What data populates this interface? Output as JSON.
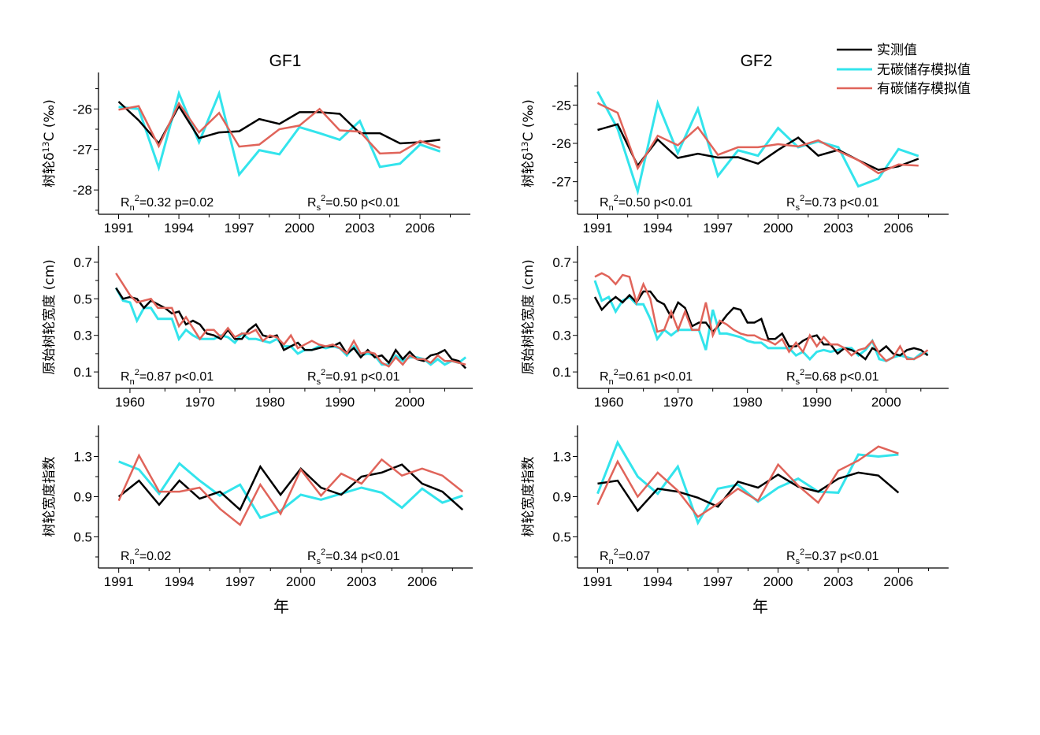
{
  "legend": {
    "entries": [
      {
        "label": "实测值",
        "color": "#000000"
      },
      {
        "label": "无碳储存模拟值",
        "color": "#33e4ec"
      },
      {
        "label": "有碳储存模拟值",
        "color": "#e0645a"
      }
    ]
  },
  "columns": [
    {
      "title": "GF1"
    },
    {
      "title": "GF2"
    }
  ],
  "xlabel": "年",
  "chart_data": [
    {
      "type": "line",
      "panel": "GF1-d13C",
      "column": 0,
      "row": 0,
      "title": "GF1",
      "ylabel": "树轮δ13C (‰)",
      "xlabel": "",
      "xlim": [
        1990,
        2008.5
      ],
      "ylim": [
        -28.6,
        -25.1
      ],
      "xticks": [
        1991,
        1994,
        1997,
        2000,
        2003,
        2006
      ],
      "yticks": [
        -26,
        -27,
        -28
      ],
      "stats": [
        {
          "label": "R",
          "sub": "n",
          "rest": "=0.32   p=0.02"
        },
        {
          "label": "R",
          "sub": "s",
          "rest": "=0.50   p<0.01"
        }
      ],
      "x": [
        1991,
        1992,
        1993,
        1994,
        1995,
        1996,
        1997,
        1998,
        1999,
        2000,
        2001,
        2002,
        2003,
        2004,
        2005,
        2006,
        2007
      ],
      "series": [
        {
          "name": "实测值",
          "values": [
            -25.82,
            -26.28,
            -26.85,
            -25.93,
            -26.72,
            -26.58,
            -26.55,
            -26.25,
            -26.37,
            -26.08,
            -26.08,
            -26.12,
            -26.6,
            -26.6,
            -26.85,
            -26.82,
            -26.76
          ]
        },
        {
          "name": "无碳储存模拟值",
          "values": [
            -25.95,
            -26.0,
            -27.45,
            -25.62,
            -26.82,
            -25.62,
            -27.62,
            -27.02,
            -27.12,
            -26.45,
            -26.6,
            -26.76,
            -26.3,
            -27.43,
            -27.35,
            -26.88,
            -27.05
          ]
        },
        {
          "name": "有碳储存模拟值",
          "values": [
            -26.02,
            -25.93,
            -26.92,
            -25.86,
            -26.58,
            -26.1,
            -26.93,
            -26.88,
            -26.5,
            -26.41,
            -26.0,
            -26.53,
            -26.56,
            -27.1,
            -27.08,
            -26.79,
            -26.96
          ]
        }
      ]
    },
    {
      "type": "line",
      "panel": "GF2-d13C",
      "column": 1,
      "row": 0,
      "title": "GF2",
      "ylabel": "树轮δ13C (‰)",
      "xlabel": "",
      "xlim": [
        1990,
        2008.5
      ],
      "ylim": [
        -27.85,
        -24.15
      ],
      "xticks": [
        1991,
        1994,
        1997,
        2000,
        2003,
        2006
      ],
      "yticks": [
        -25,
        -26,
        -27
      ],
      "stats": [
        {
          "label": "R",
          "sub": "n",
          "rest": "=0.50   p<0.01"
        },
        {
          "label": "R",
          "sub": "s",
          "rest": "=0.73   p<0.01"
        }
      ],
      "x": [
        1991,
        1992,
        1993,
        1994,
        1995,
        1996,
        1997,
        1998,
        1999,
        2000,
        2001,
        2002,
        2003,
        2004,
        2005,
        2006,
        2007
      ],
      "series": [
        {
          "name": "实测值",
          "values": [
            -25.65,
            -25.5,
            -26.58,
            -25.9,
            -26.38,
            -26.27,
            -26.37,
            -26.36,
            -26.53,
            -26.17,
            -25.85,
            -26.32,
            -26.17,
            -26.44,
            -26.69,
            -26.6,
            -26.4
          ]
        },
        {
          "name": "无碳储存模拟值",
          "values": [
            -24.65,
            -25.62,
            -27.25,
            -24.95,
            -26.25,
            -25.1,
            -26.85,
            -26.18,
            -26.32,
            -25.6,
            -26.1,
            -25.95,
            -26.1,
            -27.12,
            -26.92,
            -26.15,
            -26.33
          ]
        },
        {
          "name": "有碳储存模拟值",
          "values": [
            -24.95,
            -25.2,
            -26.65,
            -25.8,
            -26.05,
            -25.58,
            -26.3,
            -26.1,
            -26.1,
            -26.02,
            -26.08,
            -25.92,
            -26.2,
            -26.44,
            -26.78,
            -26.55,
            -26.58
          ]
        }
      ]
    },
    {
      "type": "line",
      "panel": "GF1-width",
      "column": 0,
      "row": 1,
      "title": "",
      "ylabel": "原始树轮宽度 (cm)",
      "xlabel": "",
      "xlim": [
        1955.5,
        2009
      ],
      "ylim": [
        0.01,
        0.79
      ],
      "xticks": [
        1960,
        1970,
        1980,
        1990,
        2000
      ],
      "yticks": [
        0.7,
        0.5,
        0.3,
        0.1
      ],
      "stats": [
        {
          "label": "R",
          "sub": "n",
          "rest": "=0.87   p<0.01"
        },
        {
          "label": "R",
          "sub": "s",
          "rest": "=0.91   p<0.01"
        }
      ],
      "x": [
        1958,
        1959,
        1960,
        1961,
        1962,
        1963,
        1964,
        1965,
        1966,
        1967,
        1968,
        1969,
        1970,
        1971,
        1972,
        1973,
        1974,
        1975,
        1976,
        1977,
        1978,
        1979,
        1980,
        1981,
        1982,
        1983,
        1984,
        1985,
        1986,
        1987,
        1988,
        1989,
        1990,
        1991,
        1992,
        1993,
        1994,
        1995,
        1996,
        1997,
        1998,
        1999,
        2000,
        2001,
        2002,
        2003,
        2004,
        2005,
        2006,
        2007,
        2008
      ],
      "series": [
        {
          "name": "实测值",
          "values": [
            0.56,
            0.5,
            0.51,
            0.5,
            0.45,
            0.49,
            0.47,
            0.45,
            0.42,
            0.43,
            0.36,
            0.38,
            0.36,
            0.31,
            0.3,
            0.28,
            0.33,
            0.28,
            0.28,
            0.33,
            0.36,
            0.3,
            0.29,
            0.3,
            0.22,
            0.24,
            0.26,
            0.22,
            0.22,
            0.23,
            0.24,
            0.24,
            0.26,
            0.2,
            0.23,
            0.18,
            0.22,
            0.18,
            0.19,
            0.15,
            0.22,
            0.17,
            0.21,
            0.17,
            0.16,
            0.19,
            0.2,
            0.22,
            0.17,
            0.16,
            0.12
          ]
        },
        {
          "name": "无碳储存模拟值",
          "values": [
            0.56,
            0.49,
            0.48,
            0.38,
            0.45,
            0.45,
            0.39,
            0.39,
            0.39,
            0.28,
            0.33,
            0.3,
            0.28,
            0.28,
            0.28,
            0.3,
            0.29,
            0.26,
            0.31,
            0.28,
            0.28,
            0.27,
            0.26,
            0.28,
            0.24,
            0.24,
            0.2,
            0.22,
            0.22,
            0.24,
            0.23,
            0.24,
            0.23,
            0.19,
            0.24,
            0.19,
            0.2,
            0.19,
            0.14,
            0.14,
            0.19,
            0.16,
            0.18,
            0.18,
            0.17,
            0.14,
            0.17,
            0.14,
            0.16,
            0.15,
            0.18
          ]
        },
        {
          "name": "有碳储存模拟值",
          "values": [
            0.64,
            0.58,
            0.52,
            0.48,
            0.49,
            0.5,
            0.45,
            0.45,
            0.45,
            0.35,
            0.4,
            0.34,
            0.28,
            0.33,
            0.33,
            0.29,
            0.34,
            0.29,
            0.31,
            0.31,
            0.33,
            0.27,
            0.3,
            0.29,
            0.25,
            0.3,
            0.23,
            0.25,
            0.27,
            0.25,
            0.24,
            0.25,
            0.23,
            0.2,
            0.27,
            0.2,
            0.21,
            0.2,
            0.15,
            0.13,
            0.18,
            0.14,
            0.19,
            0.17,
            0.17,
            0.15,
            0.19,
            0.16,
            0.16,
            0.15,
            0.14
          ]
        }
      ]
    },
    {
      "type": "line",
      "panel": "GF2-width",
      "column": 1,
      "row": 1,
      "title": "",
      "ylabel": "原始树轮宽度 (cm)",
      "xlabel": "",
      "xlim": [
        1955.5,
        2009
      ],
      "ylim": [
        0.01,
        0.79
      ],
      "xticks": [
        1960,
        1970,
        1980,
        1990,
        2000
      ],
      "yticks": [
        0.7,
        0.5,
        0.3,
        0.1
      ],
      "stats": [
        {
          "label": "R",
          "sub": "n",
          "rest": "=0.61   p<0.01"
        },
        {
          "label": "R",
          "sub": "s",
          "rest": "=0.68   p<0.01"
        }
      ],
      "x": [
        1958,
        1959,
        1960,
        1961,
        1962,
        1963,
        1964,
        1965,
        1966,
        1967,
        1968,
        1969,
        1970,
        1971,
        1972,
        1973,
        1974,
        1975,
        1976,
        1977,
        1978,
        1979,
        1980,
        1981,
        1982,
        1983,
        1984,
        1985,
        1986,
        1987,
        1988,
        1989,
        1990,
        1991,
        1992,
        1993,
        1994,
        1995,
        1996,
        1997,
        1998,
        1999,
        2000,
        2001,
        2002,
        2003,
        2004,
        2005,
        2006
      ],
      "series": [
        {
          "name": "实测值",
          "values": [
            0.51,
            0.44,
            0.48,
            0.51,
            0.48,
            0.52,
            0.48,
            0.54,
            0.54,
            0.49,
            0.47,
            0.4,
            0.48,
            0.45,
            0.35,
            0.37,
            0.37,
            0.32,
            0.36,
            0.41,
            0.45,
            0.44,
            0.37,
            0.37,
            0.39,
            0.28,
            0.28,
            0.31,
            0.24,
            0.24,
            0.27,
            0.29,
            0.3,
            0.25,
            0.25,
            0.2,
            0.23,
            0.22,
            0.2,
            0.17,
            0.23,
            0.21,
            0.24,
            0.2,
            0.19,
            0.22,
            0.23,
            0.22,
            0.19
          ]
        },
        {
          "name": "无碳储存模拟值",
          "values": [
            0.6,
            0.49,
            0.51,
            0.43,
            0.49,
            0.51,
            0.47,
            0.47,
            0.39,
            0.28,
            0.33,
            0.3,
            0.33,
            0.33,
            0.33,
            0.33,
            0.22,
            0.44,
            0.31,
            0.31,
            0.3,
            0.29,
            0.27,
            0.26,
            0.26,
            0.23,
            0.23,
            0.23,
            0.23,
            0.19,
            0.21,
            0.17,
            0.21,
            0.22,
            0.21,
            0.22,
            0.23,
            0.23,
            0.19,
            0.22,
            0.27,
            0.17,
            0.16,
            0.18,
            0.19,
            0.18,
            0.17,
            0.2,
            0.2
          ]
        },
        {
          "name": "有碳储存模拟值",
          "values": [
            0.62,
            0.64,
            0.62,
            0.58,
            0.63,
            0.62,
            0.48,
            0.58,
            0.5,
            0.32,
            0.33,
            0.43,
            0.33,
            0.43,
            0.33,
            0.33,
            0.48,
            0.3,
            0.38,
            0.36,
            0.33,
            0.31,
            0.3,
            0.3,
            0.28,
            0.27,
            0.25,
            0.28,
            0.21,
            0.26,
            0.21,
            0.3,
            0.24,
            0.29,
            0.25,
            0.25,
            0.23,
            0.19,
            0.22,
            0.23,
            0.27,
            0.2,
            0.16,
            0.18,
            0.24,
            0.17,
            0.17,
            0.19,
            0.22
          ]
        }
      ]
    },
    {
      "type": "line",
      "panel": "GF1-index",
      "column": 0,
      "row": 2,
      "title": "",
      "ylabel": "树轮宽度指数",
      "xlabel": "年",
      "xlim": [
        1990,
        2008.5
      ],
      "ylim": [
        0.19,
        1.61
      ],
      "xticks": [
        1991,
        1994,
        1997,
        2000,
        2003,
        2006
      ],
      "yticks": [
        1.3,
        0.9,
        0.5
      ],
      "stats": [
        {
          "label": "R",
          "sub": "n",
          "rest": "=0.02"
        },
        {
          "label": "R",
          "sub": "s",
          "rest": "=0.34   p<0.01"
        }
      ],
      "x": [
        1991,
        1992,
        1993,
        1994,
        1995,
        1996,
        1997,
        1998,
        1999,
        2000,
        2001,
        2002,
        2003,
        2004,
        2005,
        2006,
        2007,
        2008
      ],
      "series": [
        {
          "name": "实测值",
          "values": [
            0.9,
            1.06,
            0.82,
            1.06,
            0.88,
            0.95,
            0.77,
            1.2,
            0.92,
            1.18,
            0.99,
            0.92,
            1.1,
            1.14,
            1.22,
            1.03,
            0.95,
            0.77
          ]
        },
        {
          "name": "无碳储存模拟值",
          "values": [
            1.25,
            1.17,
            0.93,
            1.23,
            1.06,
            0.91,
            1.02,
            0.69,
            0.76,
            0.92,
            0.87,
            0.93,
            0.99,
            0.94,
            0.79,
            0.98,
            0.84,
            0.91
          ]
        },
        {
          "name": "有碳储存模拟值",
          "values": [
            0.86,
            1.31,
            0.95,
            0.95,
            0.99,
            0.78,
            0.62,
            1.02,
            0.73,
            1.17,
            0.91,
            1.13,
            1.03,
            1.27,
            1.11,
            1.18,
            1.11,
            0.95
          ]
        }
      ]
    },
    {
      "type": "line",
      "panel": "GF2-index",
      "column": 1,
      "row": 2,
      "title": "",
      "ylabel": "树轮宽度指数",
      "xlabel": "年",
      "xlim": [
        1990,
        2008.5
      ],
      "ylim": [
        0.19,
        1.61
      ],
      "xticks": [
        1991,
        1994,
        1997,
        2000,
        2003,
        2006
      ],
      "yticks": [
        1.3,
        0.9,
        0.5
      ],
      "stats": [
        {
          "label": "R",
          "sub": "n",
          "rest": "=0.07"
        },
        {
          "label": "R",
          "sub": "s",
          "rest": "=0.37   p<0.01"
        }
      ],
      "x": [
        1991,
        1992,
        1993,
        1994,
        1995,
        1996,
        1997,
        1998,
        1999,
        2000,
        2001,
        2002,
        2003,
        2004,
        2005,
        2006
      ],
      "series": [
        {
          "name": "实测值",
          "values": [
            1.03,
            1.06,
            0.76,
            0.98,
            0.95,
            0.89,
            0.8,
            1.05,
            0.99,
            1.12,
            1.0,
            0.95,
            1.08,
            1.14,
            1.11,
            0.94
          ]
        },
        {
          "name": "无碳储存模拟值",
          "values": [
            0.93,
            1.44,
            1.1,
            0.93,
            1.2,
            0.64,
            0.98,
            1.02,
            0.85,
            0.99,
            1.08,
            0.95,
            0.94,
            1.32,
            1.3,
            1.32
          ]
        },
        {
          "name": "有碳储存模拟值",
          "values": [
            0.82,
            1.25,
            0.9,
            1.14,
            0.96,
            0.7,
            0.83,
            0.98,
            0.86,
            1.22,
            1.01,
            0.84,
            1.16,
            1.26,
            1.4,
            1.33
          ]
        }
      ]
    }
  ]
}
